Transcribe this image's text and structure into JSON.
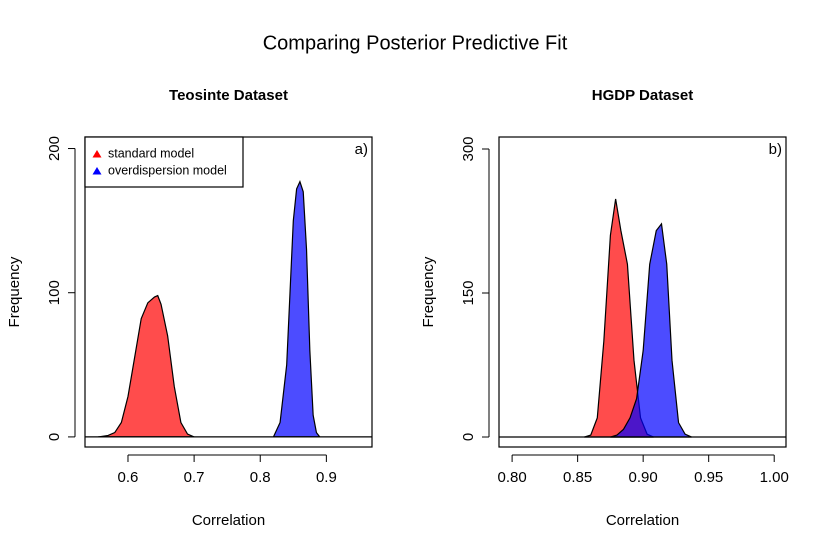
{
  "title": "Comparing Posterior Predictive Fit",
  "chart_data": [
    {
      "type": "area",
      "title": "Teosinte Dataset",
      "annotation": "a)",
      "x_label": "Correlation",
      "y_label": "Frequency",
      "xlim": [
        0.535,
        0.969
      ],
      "ylim": [
        -7,
        208
      ],
      "xticks": [
        0.6,
        0.7,
        0.8,
        0.9
      ],
      "yticks": [
        0,
        100,
        200
      ],
      "legend": "topleft",
      "fill_opacity": 0.7,
      "series": [
        {
          "name": "standard model",
          "color": "#ff0000",
          "x": [
            0.555,
            0.57,
            0.58,
            0.59,
            0.6,
            0.61,
            0.62,
            0.63,
            0.64,
            0.645,
            0.65,
            0.66,
            0.67,
            0.68,
            0.69,
            0.7
          ],
          "values": [
            0,
            1,
            3,
            10,
            28,
            55,
            82,
            93,
            97,
            98,
            92,
            70,
            35,
            10,
            2,
            0
          ]
        },
        {
          "name": "overdispersion model",
          "color": "#0000ff",
          "x": [
            0.82,
            0.83,
            0.835,
            0.84,
            0.845,
            0.85,
            0.855,
            0.86,
            0.865,
            0.87,
            0.875,
            0.88,
            0.885,
            0.89
          ],
          "values": [
            0,
            10,
            30,
            50,
            100,
            150,
            172,
            177,
            170,
            130,
            60,
            15,
            3,
            0
          ]
        }
      ]
    },
    {
      "type": "area",
      "title": "HGDP Dataset",
      "annotation": "b)",
      "x_label": "Correlation",
      "y_label": "Frequency",
      "xlim": [
        0.79,
        1.009
      ],
      "ylim": [
        -10.4,
        312.5
      ],
      "xticks": [
        {
          "value": 0.8,
          "label": "0.80"
        },
        0.85,
        {
          "value": 0.9,
          "label": "0.90"
        },
        0.95,
        {
          "value": 1,
          "label": "1.00"
        }
      ],
      "yticks": [
        0,
        150,
        300
      ],
      "fill_opacity": 0.7,
      "series": [
        {
          "name": "standard model",
          "color": "#ff0000",
          "x": [
            0.855,
            0.86,
            0.865,
            0.87,
            0.875,
            0.879,
            0.883,
            0.888,
            0.893,
            0.898,
            0.903,
            0.908
          ],
          "values": [
            0,
            2,
            20,
            100,
            210,
            248,
            215,
            180,
            80,
            20,
            3,
            0
          ]
        },
        {
          "name": "overdispersion model",
          "color": "#0000ff",
          "x": [
            0.875,
            0.88,
            0.885,
            0.89,
            0.895,
            0.9,
            0.905,
            0.91,
            0.914,
            0.918,
            0.922,
            0.927,
            0.932,
            0.937
          ],
          "values": [
            0,
            2,
            8,
            20,
            40,
            90,
            180,
            215,
            222,
            180,
            80,
            15,
            3,
            0
          ]
        }
      ]
    }
  ]
}
